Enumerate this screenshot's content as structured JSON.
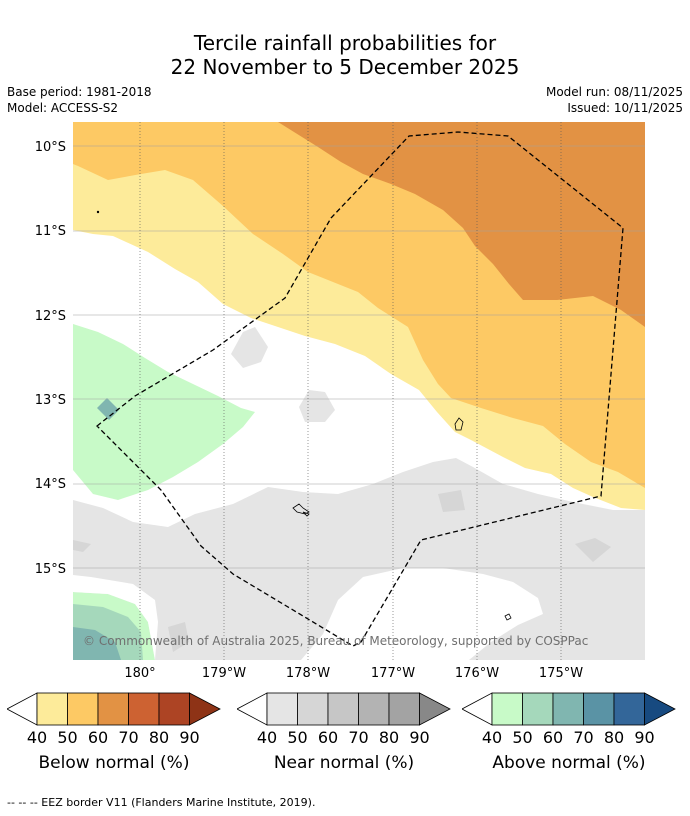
{
  "header": {
    "title_line1": "Tercile rainfall probabilities for",
    "title_line2": "22 November to 5 December 2025",
    "base_period": "Base period: 1981-2018",
    "model": "Model: ACCESS-S2",
    "model_run": "Model run: 08/11/2025",
    "issued": "Issued: 10/11/2025"
  },
  "map": {
    "lat_labels": [
      "10°S",
      "11°S",
      "12°S",
      "13°S",
      "14°S",
      "15°S"
    ],
    "lon_labels": [
      "180°",
      "179°W",
      "178°W",
      "177°W",
      "176°W",
      "175°W"
    ],
    "copyright": "© Commonwealth of Australia 2025, Bureau of Meteorology, supported by COSPPac"
  },
  "colorbars": [
    {
      "name": "below",
      "label": "Below normal (%)",
      "ticks": [
        "40",
        "50",
        "60",
        "70",
        "80",
        "90"
      ],
      "colors": [
        "#fdeb9a",
        "#fdc964",
        "#e29244",
        "#cd6232",
        "#ad4424",
        "#8e3316"
      ]
    },
    {
      "name": "near",
      "label": "Near normal (%)",
      "ticks": [
        "40",
        "50",
        "60",
        "70",
        "80",
        "90"
      ],
      "colors": [
        "#e5e5e5",
        "#d6d6d6",
        "#c6c6c6",
        "#b3b3b3",
        "#a3a3a3",
        "#888888"
      ]
    },
    {
      "name": "above",
      "label": "Above normal (%)",
      "ticks": [
        "40",
        "50",
        "60",
        "70",
        "80",
        "90"
      ],
      "colors": [
        "#c8fac8",
        "#a5d8bb",
        "#80b6b0",
        "#5a93a5",
        "#336699",
        "#174a80"
      ]
    }
  ],
  "footer": {
    "legend_text": "--  --  -- EEZ border V11 (Flanders Marine Institute, 2019)."
  }
}
